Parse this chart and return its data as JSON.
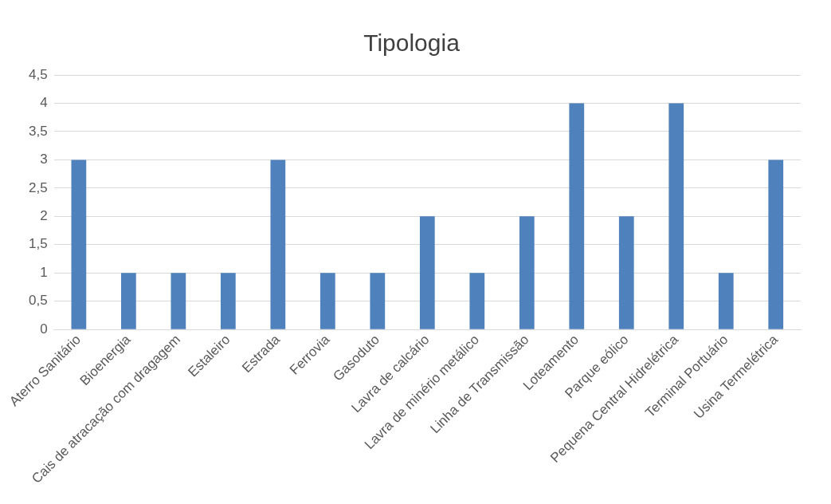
{
  "chart_data": {
    "type": "bar",
    "title": "Tipologia",
    "categories": [
      "Aterro Sanitário",
      "Bioenergia",
      "Cais de atracação com dragagem",
      "Estaleiro",
      "Estrada",
      "Ferrovia",
      "Gasoduto",
      "Lavra de calcário",
      "Lavra de minério metálico",
      "Linha de Transmissão",
      "Loteamento",
      "Parque eólico",
      "Pequena Central Hidrelétrica",
      "Terminal Portuário",
      "Usina Termelétrica"
    ],
    "values": [
      3,
      1,
      1,
      1,
      3,
      1,
      1,
      2,
      1,
      2,
      4,
      2,
      4,
      1,
      3
    ],
    "color": "#4f81bd",
    "ylim": [
      0,
      4.5
    ],
    "yticks": [
      0,
      {
        "value": 0.5,
        "label": "0,5"
      },
      1,
      {
        "value": 1.5,
        "label": "1,5"
      },
      2,
      {
        "value": 2.5,
        "label": "2,5"
      },
      3,
      {
        "value": 3.5,
        "label": "3,5"
      },
      4,
      {
        "value": 4.5,
        "label": "4,5"
      }
    ],
    "grid": "y"
  }
}
